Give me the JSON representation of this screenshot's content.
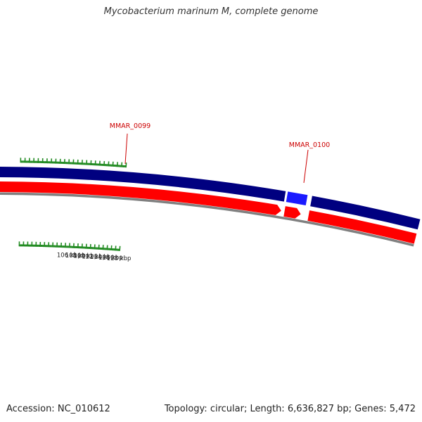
{
  "title": "Mycobacterium marinum M, complete genome",
  "footer": {
    "accession_label": "Accession:",
    "accession": "NC_010612",
    "topology_label": "Topology:",
    "topology": "circular",
    "length_label": "Length:",
    "length": "6,636,827 bp",
    "genes_label": "Genes:",
    "genes": "5,472"
  },
  "genes": [
    {
      "locus": "MMAR_0099",
      "label_color": "#cc0000"
    },
    {
      "locus": "MMAR_0100",
      "label_color": "#cc0000"
    }
  ],
  "scale_labels": [
    "106 kbp",
    "108 kbp",
    "110 kbp",
    "112 kbp",
    "114 kbp",
    "116 kbp",
    "118 kbp"
  ],
  "colors": {
    "forward_track": "#000080",
    "highlight_gene": "#1a1aff",
    "reverse_track": "#ff0000",
    "backbone": "#808080",
    "ticks": "#228b22",
    "text": "#222222"
  }
}
